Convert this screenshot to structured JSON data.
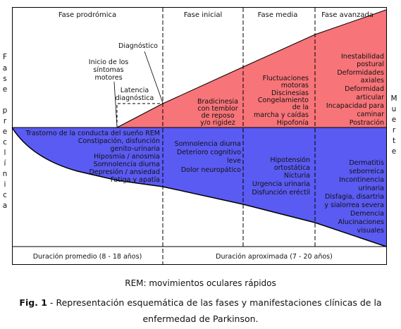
{
  "phases": {
    "prodromal": "Fase prodrómica",
    "initial": "Fase inicial",
    "middle": "Fase media",
    "advanced": "Fase avanzada"
  },
  "side_labels": {
    "left": [
      "F",
      "a",
      "s",
      "e",
      "",
      "p",
      "r",
      "e",
      "c",
      "l",
      "í",
      "n",
      "i",
      "c",
      "a"
    ],
    "right": [
      "M",
      "u",
      "e",
      "r",
      "t",
      "e"
    ]
  },
  "annotations": {
    "diagnostico": "Diagnóstico",
    "inicio": [
      "Inicio de los",
      "síntomas",
      "motores"
    ],
    "latencia": [
      "Latencia",
      "diagnóstica"
    ]
  },
  "motor_symptoms": {
    "initial": [
      "Bradicinesia",
      "con temblor",
      "de reposo",
      "y/o rigidez"
    ],
    "middle": [
      "Fluctuaciones",
      "motoras",
      "Discinesias",
      "Congelamiento",
      "de la",
      "marcha y caídas",
      "Hipofonía"
    ],
    "advanced": [
      "Inestabilidad",
      "postural",
      "Deformidades",
      "axiales",
      "Deformidad",
      "articular",
      "Incapacidad para",
      "caminar",
      "Postración"
    ]
  },
  "nonmotor_symptoms": {
    "prodromal": [
      "Trastorno de la conducta del sueño REM",
      "Constipación, disfunción",
      "genito-urinaria",
      "Hiposmia / anosmia",
      "Somnolencia diurna",
      "Depresión / ansiedad",
      "Fatiga y apatía"
    ],
    "initial": [
      "Somnolencia diurna",
      "Deterioro cognitivo",
      "leve",
      "Dolor neuropático"
    ],
    "middle": [
      "Hipotensión",
      "ortostática",
      "Nicturia",
      "Urgencia urinaria",
      "Disfunción eréctil"
    ],
    "advanced": [
      "Dermatitis",
      "seborreica",
      "Incontinencia",
      "urinaria",
      "Disfagia, disartria",
      "y sialorrea severa",
      "Demencia",
      "Alucinaciones",
      "visuales"
    ]
  },
  "durations": {
    "prodromal": "Duración promedio (8 - 18 años)",
    "clinical": "Duración aproximada (7 - 20 años)"
  },
  "caption": {
    "abbrev": "REM: movimientos oculares rápidos",
    "label": "Fig. 1",
    "text": " - Representación esquemática de las fases y manifestaciones clínicas de la enfermedad de Parkinson."
  },
  "colors": {
    "motor_area": "#f77479",
    "nonmotor_area": "#5a5bf2",
    "frame": "#000000"
  }
}
